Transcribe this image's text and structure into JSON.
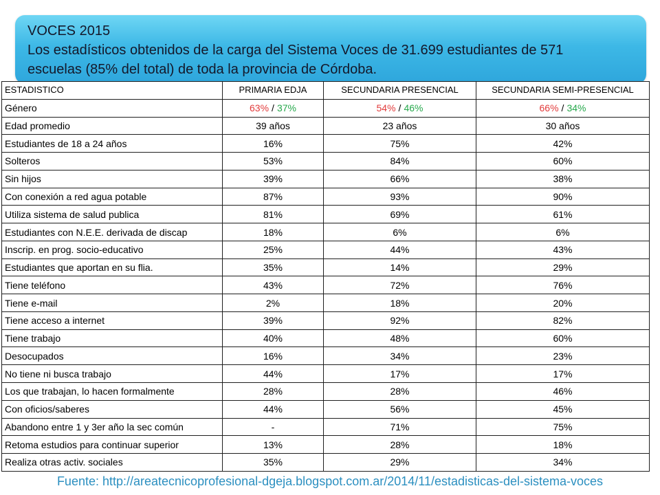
{
  "header": {
    "title": "VOCES 2015",
    "lines": [
      "Los estadísticos obtenidos de la carga del Sistema Voces de 31.699 estudiantes de 571",
      "escuelas (85% del total) de toda la provincia de Córdoba."
    ]
  },
  "table": {
    "columns": [
      "ESTADISTICO",
      "PRIMARIA EDJA",
      "SECUNDARIA PRESENCIAL",
      "SECUNDARIA SEMI-PRESENCIAL"
    ],
    "split_row": {
      "label": "Género",
      "separator": "/",
      "cells": [
        [
          "63%",
          "37%"
        ],
        [
          "54%",
          "46%"
        ],
        [
          "66%",
          "34%"
        ]
      ]
    },
    "rows": [
      {
        "label": "Edad promedio",
        "values": [
          "39 años",
          "23 años",
          "30 años"
        ]
      },
      {
        "label": "Estudiantes de 18 a 24 años",
        "values": [
          "16%",
          "75%",
          "42%"
        ]
      },
      {
        "label": "Solteros",
        "values": [
          "53%",
          "84%",
          "60%"
        ]
      },
      {
        "label": "Sin hijos",
        "values": [
          "39%",
          "66%",
          "38%"
        ]
      },
      {
        "label": "Con conexión a red agua potable",
        "values": [
          "87%",
          "93%",
          "90%"
        ]
      },
      {
        "label": "Utiliza sistema de salud publica",
        "values": [
          "81%",
          "69%",
          "61%"
        ]
      },
      {
        "label": "Estudiantes con N.E.E. derivada de discap",
        "values": [
          "18%",
          "6%",
          "6%"
        ]
      },
      {
        "label": "Inscrip. en prog. socio-educativo",
        "values": [
          "25%",
          "44%",
          "43%"
        ]
      },
      {
        "label": "Estudiantes que aportan en su flia.",
        "values": [
          "35%",
          "14%",
          "29%"
        ]
      },
      {
        "label": "Tiene teléfono",
        "values": [
          "43%",
          "72%",
          "76%"
        ]
      },
      {
        "label": "Tiene e-mail",
        "values": [
          "2%",
          "18%",
          "20%"
        ]
      },
      {
        "label": "Tiene acceso a internet",
        "values": [
          "39%",
          "92%",
          "82%"
        ]
      },
      {
        "label": "Tiene trabajo",
        "values": [
          "40%",
          "48%",
          "60%"
        ]
      },
      {
        "label": "Desocupados",
        "values": [
          "16%",
          "34%",
          "23%"
        ]
      },
      {
        "label": "No tiene ni busca trabajo",
        "values": [
          "44%",
          "17%",
          "17%"
        ]
      },
      {
        "label": "Los que trabajan, lo hacen formalmente",
        "values": [
          "28%",
          "28%",
          "46%"
        ]
      },
      {
        "label": "Con oficios/saberes",
        "values": [
          "44%",
          "56%",
          "45%"
        ]
      },
      {
        "label": "Abandono entre 1 y 3er año la sec común",
        "values": [
          "-",
          "71%",
          "75%"
        ]
      },
      {
        "label": "Retoma estudios para continuar superior",
        "values": [
          "13%",
          "28%",
          "18%"
        ]
      },
      {
        "label": "Realiza otras activ. sociales",
        "values": [
          "35%",
          "29%",
          "34%"
        ]
      }
    ]
  },
  "colors": {
    "banner": "#3db8e6",
    "split_first": "#e23a3a",
    "split_second": "#25a84b",
    "source": "#2b8fc0"
  },
  "footer": {
    "source": "Fuente: http://areatecnicoprofesional-dgeja.blogspot.com.ar/2014/11/estadisticas-del-sistema-voces"
  }
}
